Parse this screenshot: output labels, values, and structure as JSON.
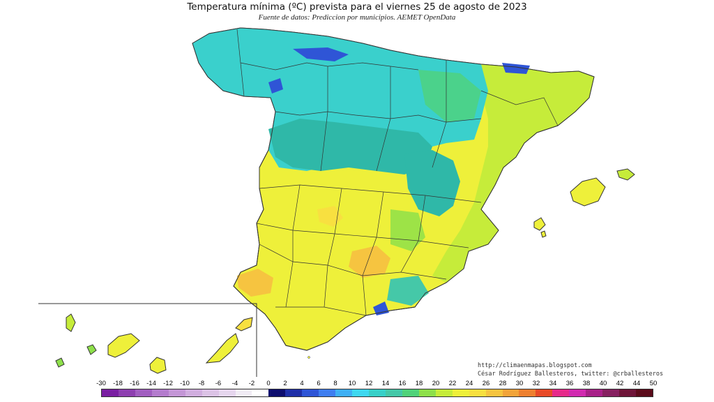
{
  "header": {
    "title": "Temperatura mínima (ºC) prevista para el viernes 25 de agosto de 2023",
    "subtitle": "Fuente de datos: Prediccion por municipios. AEMET OpenData"
  },
  "credits": {
    "blog": "http://climaenmapas.blogspot.com",
    "author": "César Rodríguez Ballesteros, twitter: @crballesteros"
  },
  "legend": {
    "labels": [
      "-30",
      "-18",
      "-16",
      "-14",
      "-12",
      "-10",
      "-8",
      "-6",
      "-4",
      "-2",
      "0",
      "2",
      "4",
      "6",
      "8",
      "10",
      "12",
      "14",
      "16",
      "18",
      "20",
      "22",
      "24",
      "26",
      "28",
      "30",
      "32",
      "34",
      "36",
      "38",
      "40",
      "42",
      "44",
      "50"
    ],
    "colors": [
      "#7a1fa2",
      "#8e3fb0",
      "#a15ec0",
      "#b47ccd",
      "#c496d6",
      "#d1aedf",
      "#dcc3e6",
      "#e6d6ee",
      "#f1ecf5",
      "#ffffff",
      "#0d0d6e",
      "#1f2fa8",
      "#2f55d6",
      "#3f7ef0",
      "#3fb0f5",
      "#3fd8f0",
      "#38d0c8",
      "#45c8a8",
      "#50d27a",
      "#8ee04a",
      "#c6ec3a",
      "#eef03a",
      "#f8e040",
      "#f6c440",
      "#f2a43a",
      "#ee8030",
      "#e84a28",
      "#e62a8a",
      "#d12ab0",
      "#a82088",
      "#862060",
      "#6e1438",
      "#5a0a1a"
    ]
  },
  "map": {
    "regions_note_colors": {
      "north": "#3ad0cc",
      "north_mountains": "#2f55d6",
      "center": "#2fb8a8",
      "south": "#eef03a",
      "south_warm": "#f6c440",
      "east": "#c6ec3a"
    }
  }
}
